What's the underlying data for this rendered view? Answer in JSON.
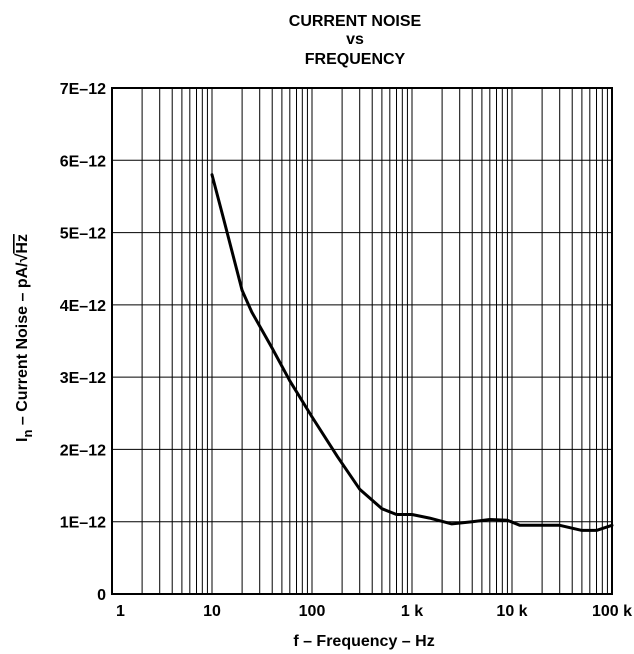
{
  "chart_data": {
    "type": "line",
    "title": [
      "CURRENT NOISE",
      "vs",
      "FREQUENCY"
    ],
    "xlabel": "f – Frequency – Hz",
    "ylabel": "I – Current Noise – pA/√Hz",
    "ylabel_parts": {
      "symbol": "I",
      "subscript": "n",
      "text": " – Current Noise –  pA/",
      "root": "√",
      "unit": "Hz"
    },
    "x_scale": "log",
    "xlim": [
      1,
      100000
    ],
    "ylim": [
      0,
      7e-12
    ],
    "x_ticks": [
      {
        "value": 1,
        "label": "1"
      },
      {
        "value": 10,
        "label": "10"
      },
      {
        "value": 100,
        "label": "100"
      },
      {
        "value": 1000,
        "label": "1 k"
      },
      {
        "value": 10000,
        "label": "10 k"
      },
      {
        "value": 100000,
        "label": "100 k"
      }
    ],
    "y_ticks": [
      {
        "value": 0,
        "label": "0"
      },
      {
        "value": 1e-12,
        "label": "1E–12"
      },
      {
        "value": 2e-12,
        "label": "2E–12"
      },
      {
        "value": 3e-12,
        "label": "3E–12"
      },
      {
        "value": 4e-12,
        "label": "4E–12"
      },
      {
        "value": 5e-12,
        "label": "5E–12"
      },
      {
        "value": 6e-12,
        "label": "6E–12"
      },
      {
        "value": 7e-12,
        "label": "7E–12"
      }
    ],
    "grid": true,
    "legend": "none",
    "series": [
      {
        "color": "#000000",
        "x": [
          10,
          13,
          20,
          25,
          40,
          60,
          100,
          180,
          300,
          500,
          700,
          1000,
          1500,
          2500,
          4000,
          6000,
          9000,
          12000,
          20000,
          30000,
          50000,
          70000,
          100000
        ],
        "y": [
          5.8e-12,
          5.2e-12,
          4.2e-12,
          3.9e-12,
          3.4e-12,
          2.95e-12,
          2.45e-12,
          1.9e-12,
          1.45e-12,
          1.18e-12,
          1.1e-12,
          1.1e-12,
          1.05e-12,
          9.7e-13,
          1e-12,
          1.03e-12,
          1.02e-12,
          9.5e-13,
          9.5e-13,
          9.5e-13,
          8.8e-13,
          8.8e-13,
          9.5e-13
        ]
      }
    ]
  }
}
